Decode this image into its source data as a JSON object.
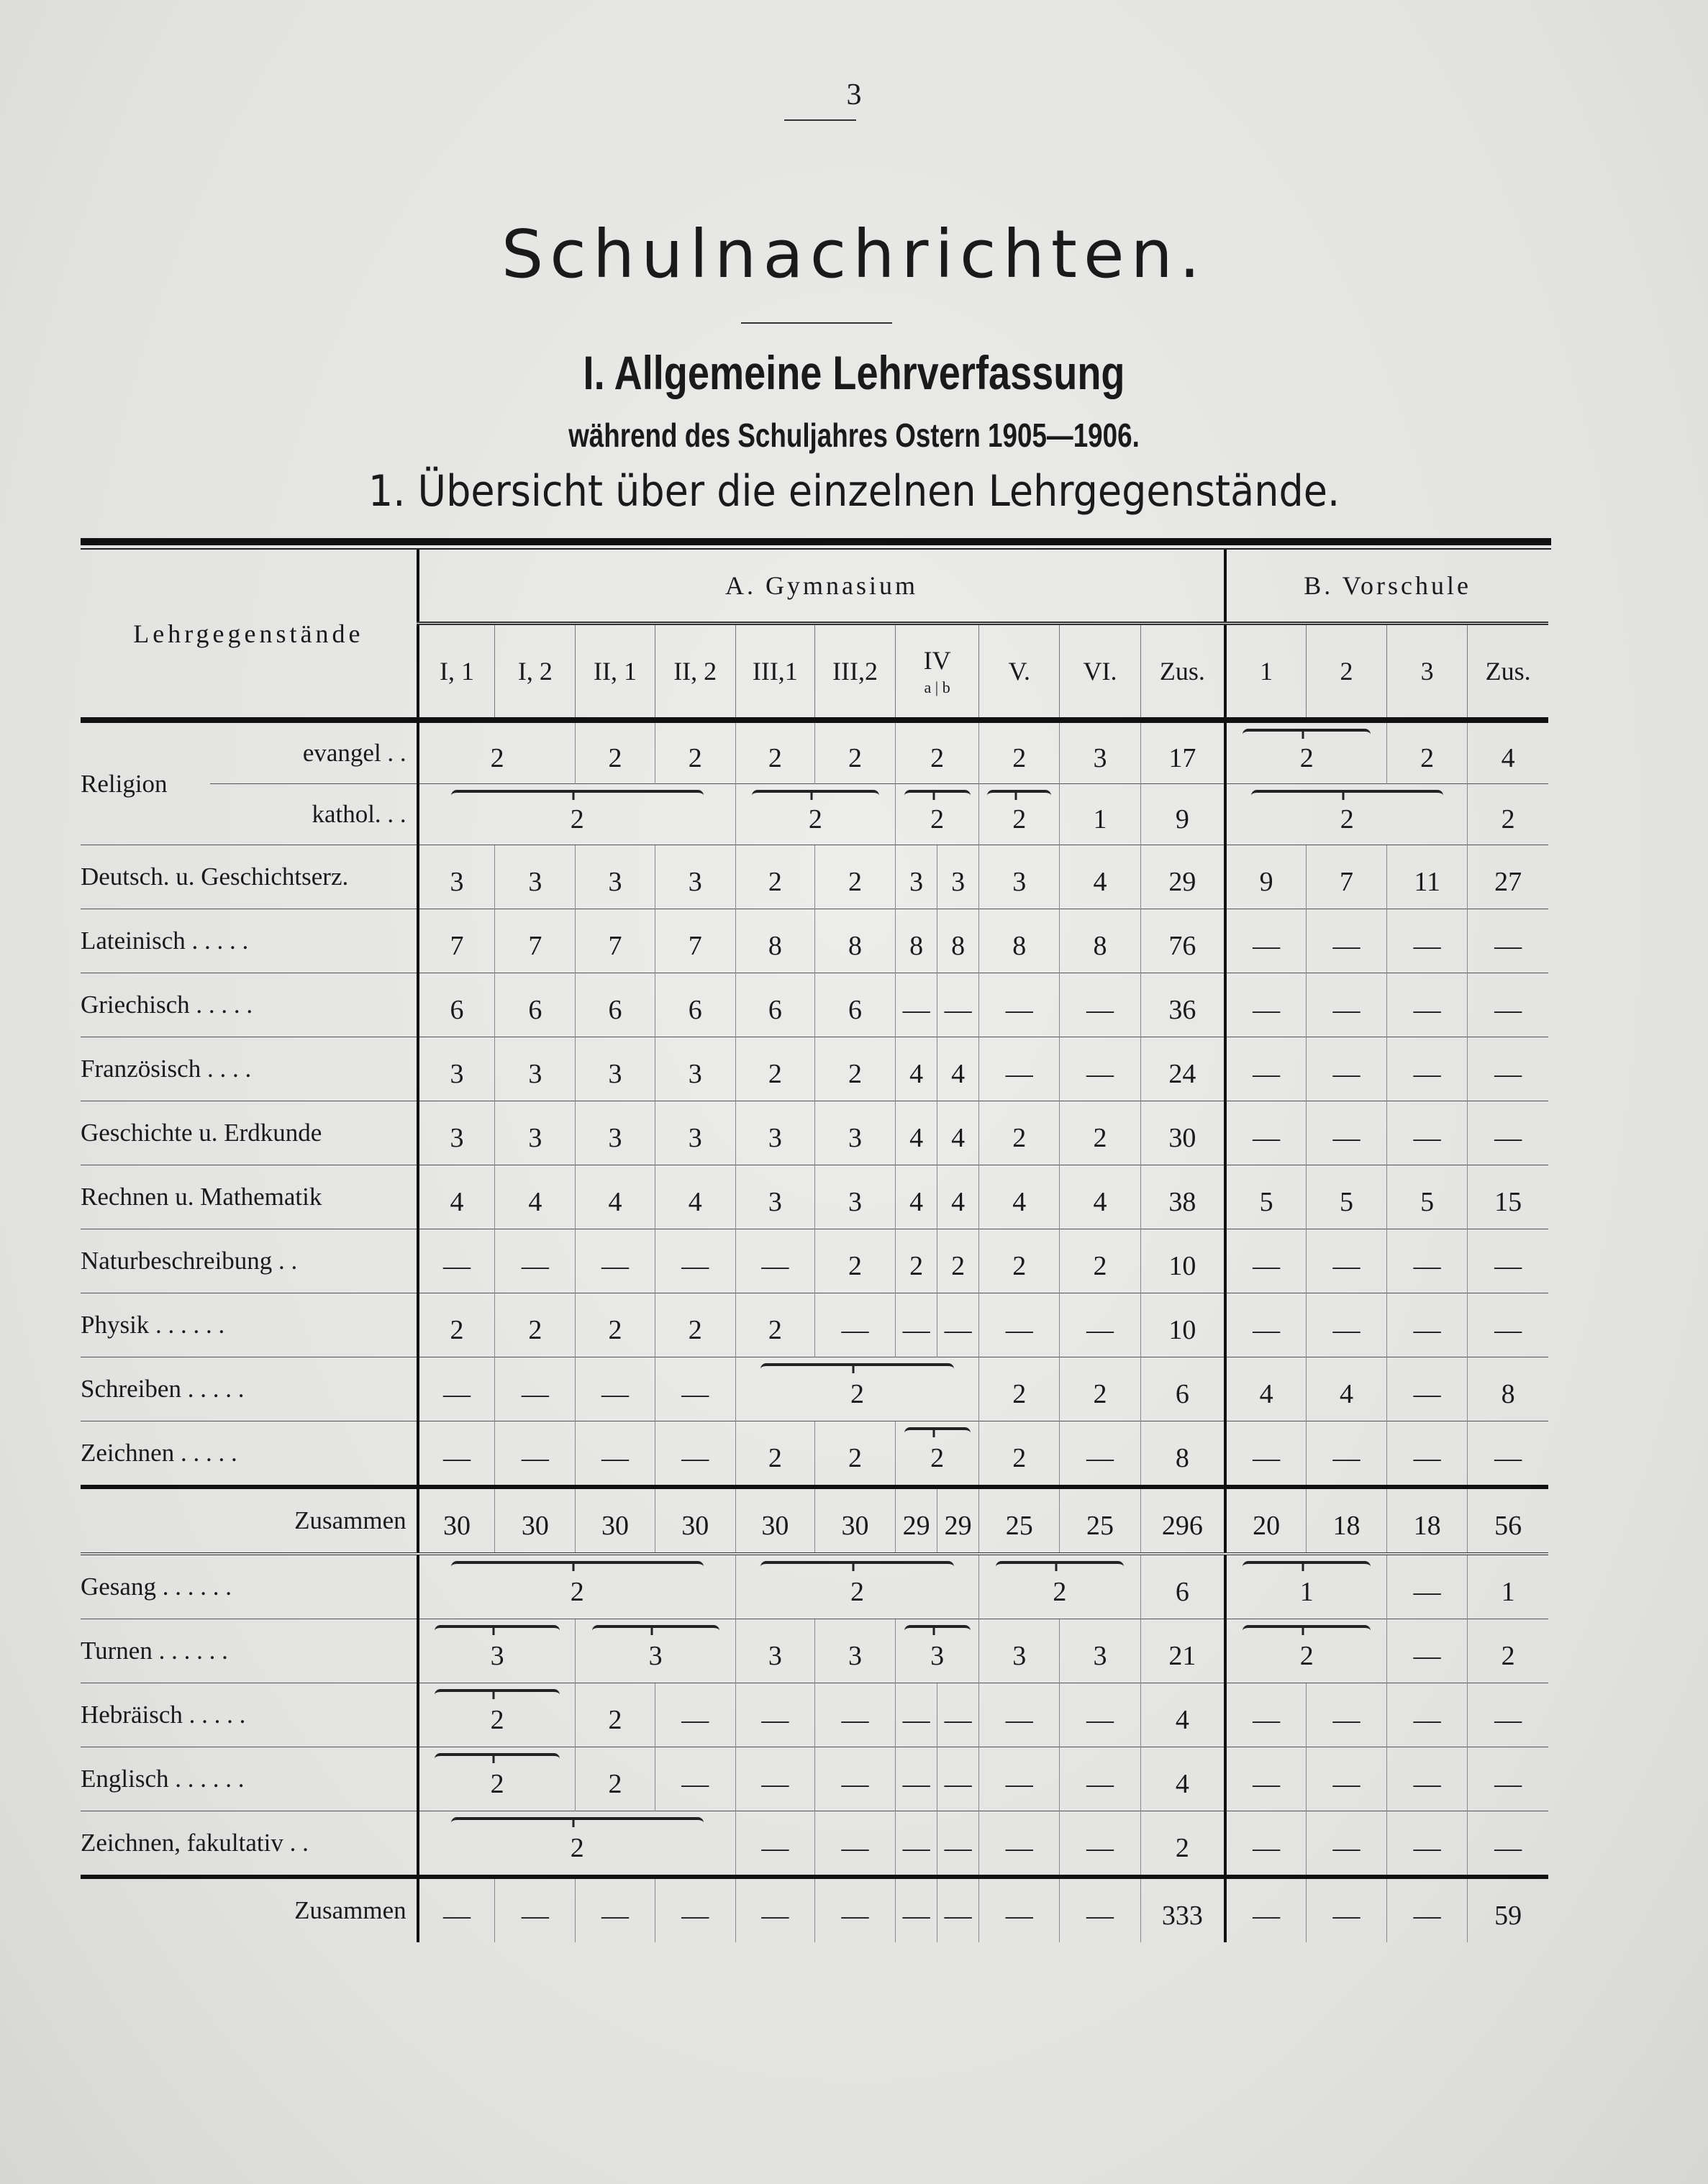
{
  "page_number": "3",
  "title": "Schulnachrichten.",
  "heading": "I. Allgemeine Lehrverfassung",
  "subheading": "während des Schuljahres Ostern 1905—1906.",
  "section": "1. Übersicht über die einzelnen Lehrgegenstände.",
  "table": {
    "subject_header": "Lehrgegenstände",
    "group_a": "A. Gymnasium",
    "group_b": "B. Vorschule",
    "columns_a": [
      "I, 1",
      "I, 2",
      "II, 1",
      "II, 2",
      "III,1",
      "III,2",
      "IV",
      "V.",
      "VI.",
      "Zus."
    ],
    "iv_sub": "a | b",
    "columns_b": [
      "1",
      "2",
      "3",
      "Zus."
    ],
    "religion_label": "Religion",
    "rows": [
      {
        "label": "evangel . .",
        "cls": "rel first",
        "cells": [
          {
            "v": "2",
            "s": 2
          },
          {
            "v": "2"
          },
          {
            "v": "2"
          },
          {
            "v": "2"
          },
          {
            "v": "2"
          },
          {
            "v": "2",
            "s": 2
          },
          {
            "v": "2"
          },
          {
            "v": "3"
          },
          {
            "v": "17"
          },
          {
            "v": "2",
            "s": 2,
            "b": 1
          },
          {
            "v": "2"
          },
          {
            "v": "4"
          }
        ]
      },
      {
        "label": "kathol. . .",
        "cls": "rel",
        "cells": [
          {
            "v": "2",
            "s": 4,
            "b": 1
          },
          {
            "v": "2",
            "s": 2,
            "b": 1
          },
          {
            "v": "2",
            "s": 2,
            "b": 1
          },
          {
            "v": "2",
            "b": 1
          },
          {
            "v": "1"
          },
          {
            "v": "9"
          },
          {
            "v": "2",
            "s": 3,
            "b": 1
          },
          {
            "v": "2"
          }
        ]
      },
      {
        "label": "Deutsch. u. Geschichtserz.",
        "cells": [
          "3",
          "3",
          "3",
          "3",
          "2",
          "2",
          "3",
          "3",
          "3",
          "4",
          "29",
          "9",
          "7",
          "11",
          "27"
        ]
      },
      {
        "label": "Lateinisch . . . . .",
        "cells": [
          "7",
          "7",
          "7",
          "7",
          "8",
          "8",
          "8",
          "8",
          "8",
          "8",
          "76",
          "—",
          "—",
          "—",
          "—"
        ]
      },
      {
        "label": "Griechisch . . . . .",
        "cells": [
          "6",
          "6",
          "6",
          "6",
          "6",
          "6",
          "—",
          "—",
          "—",
          "—",
          "36",
          "—",
          "—",
          "—",
          "—"
        ]
      },
      {
        "label": "Französisch . . . .",
        "cells": [
          "3",
          "3",
          "3",
          "3",
          "2",
          "2",
          "4",
          "4",
          "—",
          "—",
          "24",
          "—",
          "—",
          "—",
          "—"
        ]
      },
      {
        "label": "Geschichte u. Erdkunde",
        "cells": [
          "3",
          "3",
          "3",
          "3",
          "3",
          "3",
          "4",
          "4",
          "2",
          "2",
          "30",
          "—",
          "—",
          "—",
          "—"
        ]
      },
      {
        "label": "Rechnen u. Mathematik",
        "cells": [
          "4",
          "4",
          "4",
          "4",
          "3",
          "3",
          "4",
          "4",
          "4",
          "4",
          "38",
          "5",
          "5",
          "5",
          "15"
        ]
      },
      {
        "label": "Naturbeschreibung . .",
        "cells": [
          "—",
          "—",
          "—",
          "—",
          "—",
          "2",
          "2",
          "2",
          "2",
          "2",
          "10",
          "—",
          "—",
          "—",
          "—"
        ]
      },
      {
        "label": "Physik . . . . . .",
        "cells": [
          "2",
          "2",
          "2",
          "2",
          "2",
          "—",
          "—",
          "—",
          "—",
          "—",
          "10",
          "—",
          "—",
          "—",
          "—"
        ]
      },
      {
        "label": "Schreiben . . . . .",
        "cells": [
          "—",
          "—",
          "—",
          "—",
          {
            "v": "2",
            "s": 4,
            "b": 1
          },
          "2",
          "2",
          "6",
          "4",
          "4",
          "—",
          "8"
        ]
      },
      {
        "label": "Zeichnen . . . . .",
        "cells": [
          "—",
          "—",
          "—",
          "—",
          "2",
          "2",
          {
            "v": "2",
            "s": 2,
            "b": 1
          },
          "2",
          "—",
          "8",
          "—",
          "—",
          "—",
          "—"
        ]
      },
      {
        "label": "Zusammen",
        "cls": "sum",
        "right": 1,
        "cells": [
          "30",
          "30",
          "30",
          "30",
          "30",
          "30",
          "29",
          "29",
          "25",
          "25",
          "296",
          "20",
          "18",
          "18",
          "56"
        ]
      },
      {
        "label": "Gesang . . . . . .",
        "cls": "after-sum",
        "cells": [
          {
            "v": "2",
            "s": 4,
            "b": 1
          },
          {
            "v": "2",
            "s": 4,
            "b": 1
          },
          {
            "v": "2",
            "s": 2,
            "b": 1
          },
          "6",
          {
            "v": "1",
            "s": 2,
            "b": 1
          },
          "—",
          "1"
        ]
      },
      {
        "label": "Turnen . . . . . .",
        "cells": [
          {
            "v": "3",
            "s": 2,
            "b": 1
          },
          {
            "v": "3",
            "s": 2,
            "b": 1
          },
          "3",
          "3",
          {
            "v": "3",
            "s": 2,
            "b": 1
          },
          "3",
          "3",
          "21",
          {
            "v": "2",
            "s": 2,
            "b": 1
          },
          "—",
          "2"
        ]
      },
      {
        "label": "Hebräisch . . . . .",
        "cells": [
          {
            "v": "2",
            "s": 2,
            "b": 1
          },
          "2",
          "—",
          "—",
          "—",
          "—",
          "—",
          "—",
          "—",
          "4",
          "—",
          "—",
          "—",
          "—"
        ]
      },
      {
        "label": "Englisch . . . . . .",
        "cells": [
          {
            "v": "2",
            "s": 2,
            "b": 1
          },
          "2",
          "—",
          "—",
          "—",
          "—",
          "—",
          "—",
          "—",
          "4",
          "—",
          "—",
          "—",
          "—"
        ]
      },
      {
        "label": "Zeichnen, fakultativ . .",
        "cells": [
          {
            "v": "2",
            "s": 4,
            "b": 1
          },
          "—",
          "—",
          "—",
          "—",
          "—",
          "—",
          "2",
          "—",
          "—",
          "—",
          "—"
        ]
      },
      {
        "label": "Zusammen",
        "cls": "sum",
        "right": 1,
        "cells": [
          "—",
          "—",
          "—",
          "—",
          "—",
          "—",
          "—",
          "—",
          "—",
          "—",
          "333",
          "—",
          "—",
          "—",
          "59"
        ]
      }
    ]
  }
}
